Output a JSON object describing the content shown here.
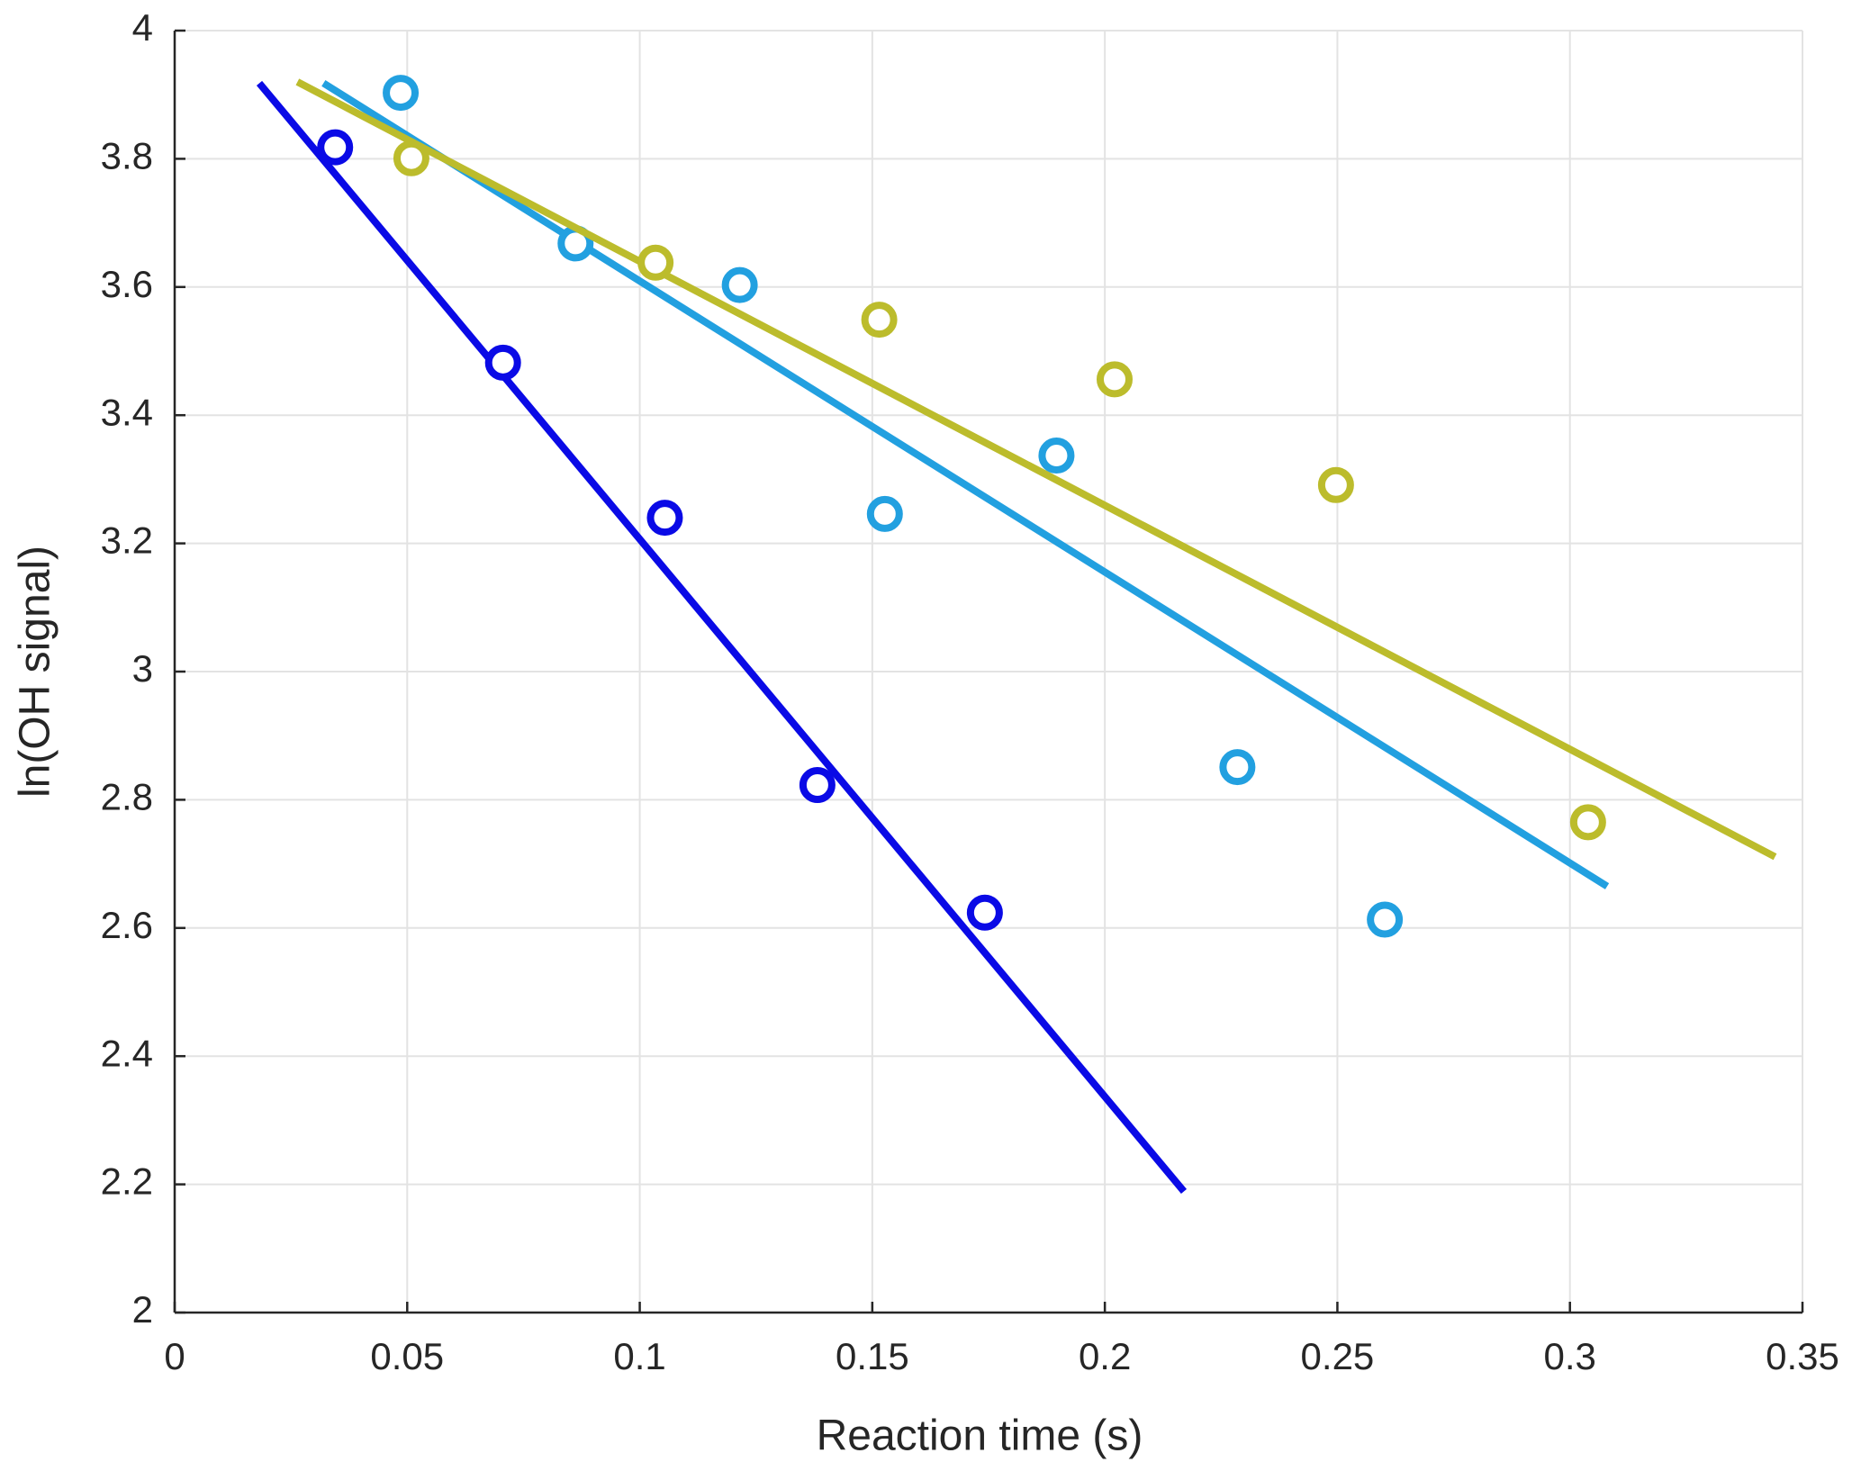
{
  "chart_data": {
    "type": "scatter",
    "xlabel": "Reaction time (s)",
    "ylabel": "ln(OH signal)",
    "xlim": [
      0,
      0.35
    ],
    "xticks": [
      0,
      0.05,
      0.1,
      0.15,
      0.2,
      0.25,
      0.3,
      0.35
    ],
    "ylim": [
      2,
      4
    ],
    "yticks": [
      2,
      2.2,
      2.4,
      2.6,
      2.8,
      3,
      3.2,
      3.4,
      3.6,
      3.8,
      4
    ],
    "grid": true,
    "series": [
      {
        "color": "#0a0ae6",
        "x": [
          0.0345,
          0.0706,
          0.1054,
          0.1382,
          0.1742
        ],
        "values": [
          3.818,
          3.482,
          3.24,
          2.823,
          2.624
        ],
        "fit": {
          "x": [
            0.0182,
            0.217
          ],
          "values": [
            3.918,
            2.189
          ]
        }
      },
      {
        "color": "#22a0e0",
        "x": [
          0.0486,
          0.0862,
          0.1215,
          0.1527,
          0.1896,
          0.2285,
          0.2602
        ],
        "values": [
          3.903,
          3.668,
          3.603,
          3.246,
          3.337,
          2.851,
          2.613
        ],
        "fit": {
          "x": [
            0.032,
            0.308
          ],
          "values": [
            3.918,
            2.665
          ]
        }
      },
      {
        "color": "#bcbc2c",
        "x": [
          0.0509,
          0.1034,
          0.1515,
          0.2021,
          0.2497,
          0.3039
        ],
        "values": [
          3.801,
          3.638,
          3.549,
          3.456,
          3.291,
          2.765
        ],
        "fit": {
          "x": [
            0.0264,
            0.3441
          ],
          "values": [
            3.92,
            2.711
          ]
        }
      }
    ]
  }
}
